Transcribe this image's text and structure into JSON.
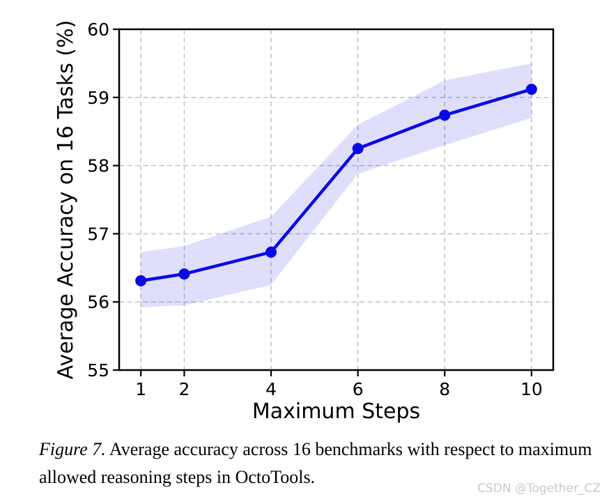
{
  "figure": {
    "caption_label": "Figure 7.",
    "caption_text": "Average accuracy across 16 benchmarks with respect to maximum allowed reasoning steps in OctoTools."
  },
  "watermark": "CSDN @Together_CZ",
  "chart_data": {
    "type": "line",
    "title": "",
    "xlabel": "Maximum Steps",
    "ylabel": "Average Accuracy on 16 Tasks (%)",
    "x": [
      1,
      2,
      4,
      6,
      8,
      10
    ],
    "series": [
      {
        "name": "Average accuracy",
        "values": [
          56.31,
          56.41,
          56.73,
          58.25,
          58.74,
          59.12
        ]
      }
    ],
    "band": {
      "upper": [
        56.73,
        56.82,
        57.25,
        58.6,
        59.25,
        59.5
      ],
      "lower": [
        55.92,
        55.95,
        56.25,
        57.88,
        58.3,
        58.7
      ]
    },
    "xticks": [
      1,
      2,
      4,
      6,
      8,
      10
    ],
    "yticks": [
      55,
      56,
      57,
      58,
      59,
      60
    ],
    "xlim": [
      0.5,
      10.5
    ],
    "ylim": [
      55,
      60
    ],
    "grid": true,
    "grid_style": "dashed",
    "legend_position": "none",
    "colors": {
      "line": "#0909e8",
      "band": "#0909e8",
      "band_opacity": 0.13,
      "grid": "#bfbfbf",
      "axis": "#000000"
    }
  }
}
